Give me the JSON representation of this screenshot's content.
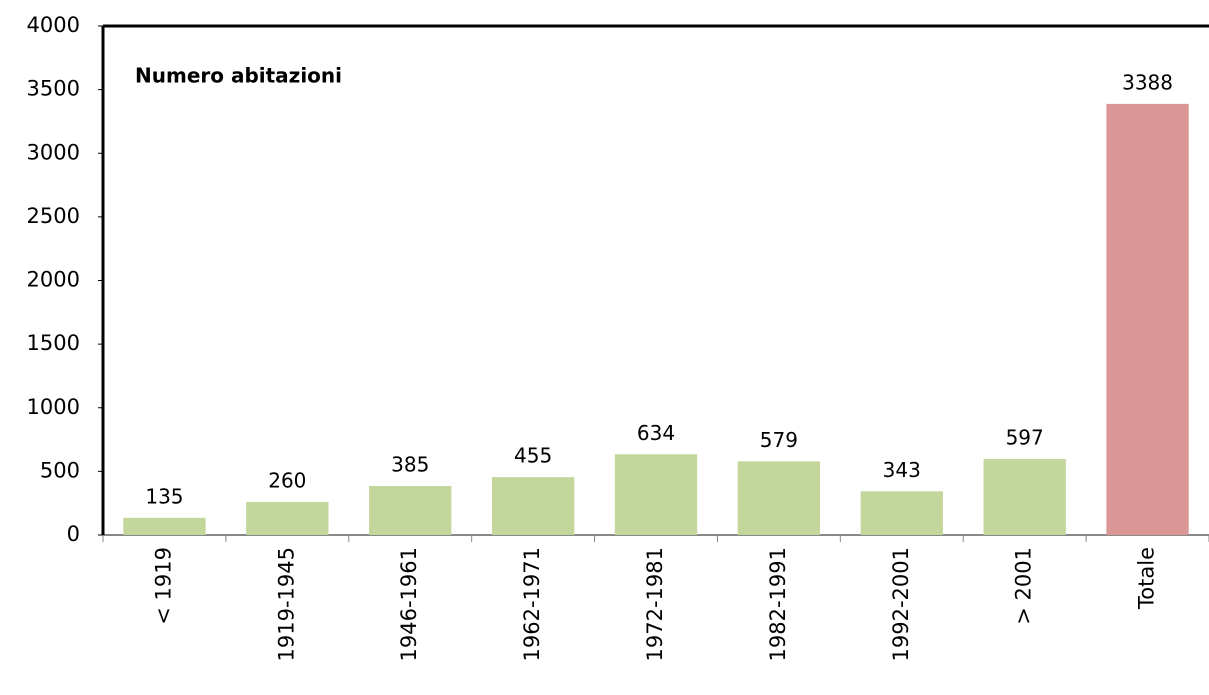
{
  "chart_data": {
    "type": "bar",
    "title": "Numero abitazioni",
    "categories": [
      "< 1919",
      "1919-1945",
      "1946-1961",
      "1962-1971",
      "1972-1981",
      "1982-1991",
      "1992-2001",
      "> 2001",
      "Totale"
    ],
    "values": [
      135,
      260,
      385,
      455,
      634,
      579,
      343,
      597,
      3388
    ],
    "colors": [
      "#c3d69b",
      "#c3d69b",
      "#c3d69b",
      "#c3d69b",
      "#c3d69b",
      "#c3d69b",
      "#c3d69b",
      "#c3d69b",
      "#d99694"
    ],
    "ylim": [
      0,
      4000
    ],
    "yticks": [
      0,
      500,
      1000,
      1500,
      2000,
      2500,
      3000,
      3500,
      4000
    ],
    "grid": false
  }
}
